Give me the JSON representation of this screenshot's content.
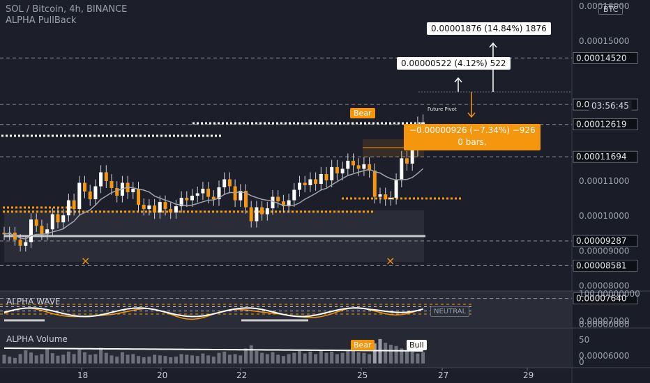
{
  "header": {
    "symbol_line": "SOL / Bitcoin, 4h, BINANCE",
    "indicator_line": "ALPHA PullBack",
    "currency_badge": "BTC"
  },
  "timer": "03:56:45",
  "measure_labels": {
    "up_big": "0.00001876 (14.84%) 1876",
    "up_small": "0.00000522 (4.12%) 522",
    "down_line1": "−0.00000926 (−7.34%) −926",
    "down_line2": "0 bars,"
  },
  "markers": {
    "bear_main": "Bear",
    "bear_vol": "Bear",
    "bull_vol": "Bull",
    "future_pivot": "Future Pivot",
    "wave_title": "ALPHA WAVE",
    "wave_state": "NEUTRAL",
    "volume_title": "ALPHA Volume"
  },
  "chart_data": {
    "type": "candlestick",
    "x_tick_labels": [
      "18",
      "20",
      "22",
      "25",
      "27",
      "29"
    ],
    "y_tick_labels": [
      "0.00016000",
      "0.00015000",
      "0.00011000",
      "0.00010000",
      "0.00009000",
      "0.00008000",
      "0.00007000",
      "0.00006000"
    ],
    "ylim": [
      5.5e-05,
      0.000165
    ],
    "price_levels": [
      {
        "label": "0.00014520",
        "value": 0.0001452
      },
      {
        "label": "0.00013190",
        "value": 0.0001319
      },
      {
        "label": "0.00012619",
        "value": 0.00012619
      },
      {
        "label": "0.00011694",
        "value": 0.00011694
      },
      {
        "label": "0.00009287",
        "value": 9.287e-05
      },
      {
        "label": "0.00008581",
        "value": 8.581e-05
      },
      {
        "label": "0.00007640",
        "value": 7.64e-05
      }
    ],
    "closes": [
      9.48e-05,
      9.52e-05,
      9.32e-05,
      9.15e-05,
      9.25e-05,
      9.9e-05,
      9.72e-05,
      9.48e-05,
      9.62e-05,
      0.0001005,
      9.82e-05,
      0.0001002,
      0.0001045,
      0.000102,
      0.0001095,
      0.000107,
      0.0001048,
      0.0001085,
      0.0001125,
      0.00011,
      0.000108,
      0.0001058,
      0.0001095,
      0.0001068,
      0.0001078,
      0.0001032,
      0.000102,
      0.000103,
      0.000101,
      0.000104,
      0.000102,
      0.000101,
      0.0001028,
      0.0001052,
      0.0001045,
      0.0001058,
      0.0001065,
      0.0001078,
      0.0001055,
      0.0001048,
      0.0001082,
      0.0001105,
      0.0001085,
      0.0001045,
      0.0001072,
      0.0001025,
      9.85e-05,
      0.0001025,
      0.0001005,
      0.0001022,
      0.0001055,
      0.0001042,
      0.0001028,
      0.0001045,
      0.0001075,
      0.0001095,
      0.0001088,
      0.0001105,
      0.0001092,
      0.000112,
      0.0001102,
      0.000114,
      0.0001122,
      0.0001135,
      0.0001158,
      0.0001145,
      0.0001135,
      0.0001148,
      0.000113,
      0.0001055,
      0.0001062,
      0.0001048,
      0.0001052,
      0.0001102,
      0.0001165,
      0.000115,
      0.0001192,
      0.0001262,
      0.0001268
    ],
    "volume_title": "ALPHA Volume",
    "volume_ylim": [
      0,
      100
    ],
    "volume_tick_labels": [
      "50",
      "0"
    ],
    "volumes": [
      28,
      22,
      18,
      30,
      42,
      35,
      26,
      30,
      48,
      33,
      25,
      28,
      38,
      30,
      44,
      36,
      28,
      30,
      50,
      34,
      26,
      22,
      36,
      28,
      30,
      24,
      20,
      22,
      28,
      26,
      24,
      20,
      22,
      30,
      28,
      26,
      24,
      32,
      26,
      22,
      34,
      38,
      28,
      30,
      26,
      48,
      58,
      40,
      34,
      30,
      36,
      28,
      24,
      30,
      34,
      40,
      32,
      38,
      30,
      42,
      34,
      38,
      30,
      34,
      44,
      40,
      36,
      34,
      30,
      64,
      78,
      66,
      60,
      56,
      48,
      40,
      38,
      32,
      36
    ],
    "wave_ylim": [
      0,
      100
    ],
    "wave_tick_labels": [
      "100.00000000",
      "0.00000000"
    ]
  }
}
